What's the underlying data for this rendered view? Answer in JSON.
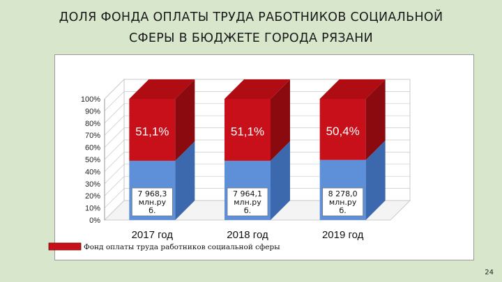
{
  "title": {
    "line1": "ДОЛЯ ФОНДА ОПЛАТЫ ТРУДА РАБОТНИКОВ СОЦИАЛЬНОЙ",
    "line2": "СФЕРЫ В БЮДЖЕТЕ ГОРОДА РЯЗАНИ"
  },
  "page_number": "24",
  "colors": {
    "top_front": "#c8101a",
    "top_side": "#8a0a10",
    "top_top": "#b00c14",
    "bottom_front": "#5d90d8",
    "bottom_side": "#3c68ad",
    "legend_swatch": "#c8101a"
  },
  "chart_data": {
    "type": "bar",
    "stacked": true,
    "categories": [
      "2017 год",
      "2018 год",
      "2019 год"
    ],
    "series": [
      {
        "values": [
          48.9,
          48.9,
          49.6
        ],
        "labels": [
          "7 968,3 млн.ру б.",
          "7 964,1 млн.ру б.",
          "8 278,0 млн.ру б."
        ],
        "label_lines": [
          [
            "7 968,3",
            "млн.ру",
            "б."
          ],
          [
            "7 964,1",
            "млн.ру",
            "б."
          ],
          [
            "8 278,0",
            "млн.ру",
            "б."
          ]
        ]
      },
      {
        "name": "Фонд оплаты труда работников социальной сферы",
        "values": [
          51.1,
          51.1,
          50.4
        ],
        "labels": [
          "51,1%",
          "51,1%",
          "50,4%"
        ]
      }
    ],
    "yticks": [
      "0%",
      "10%",
      "20%",
      "30%",
      "40%",
      "50%",
      "60%",
      "70%",
      "80%",
      "90%",
      "100%"
    ],
    "ylim": [
      0,
      100
    ],
    "legend": "bottom-left"
  }
}
